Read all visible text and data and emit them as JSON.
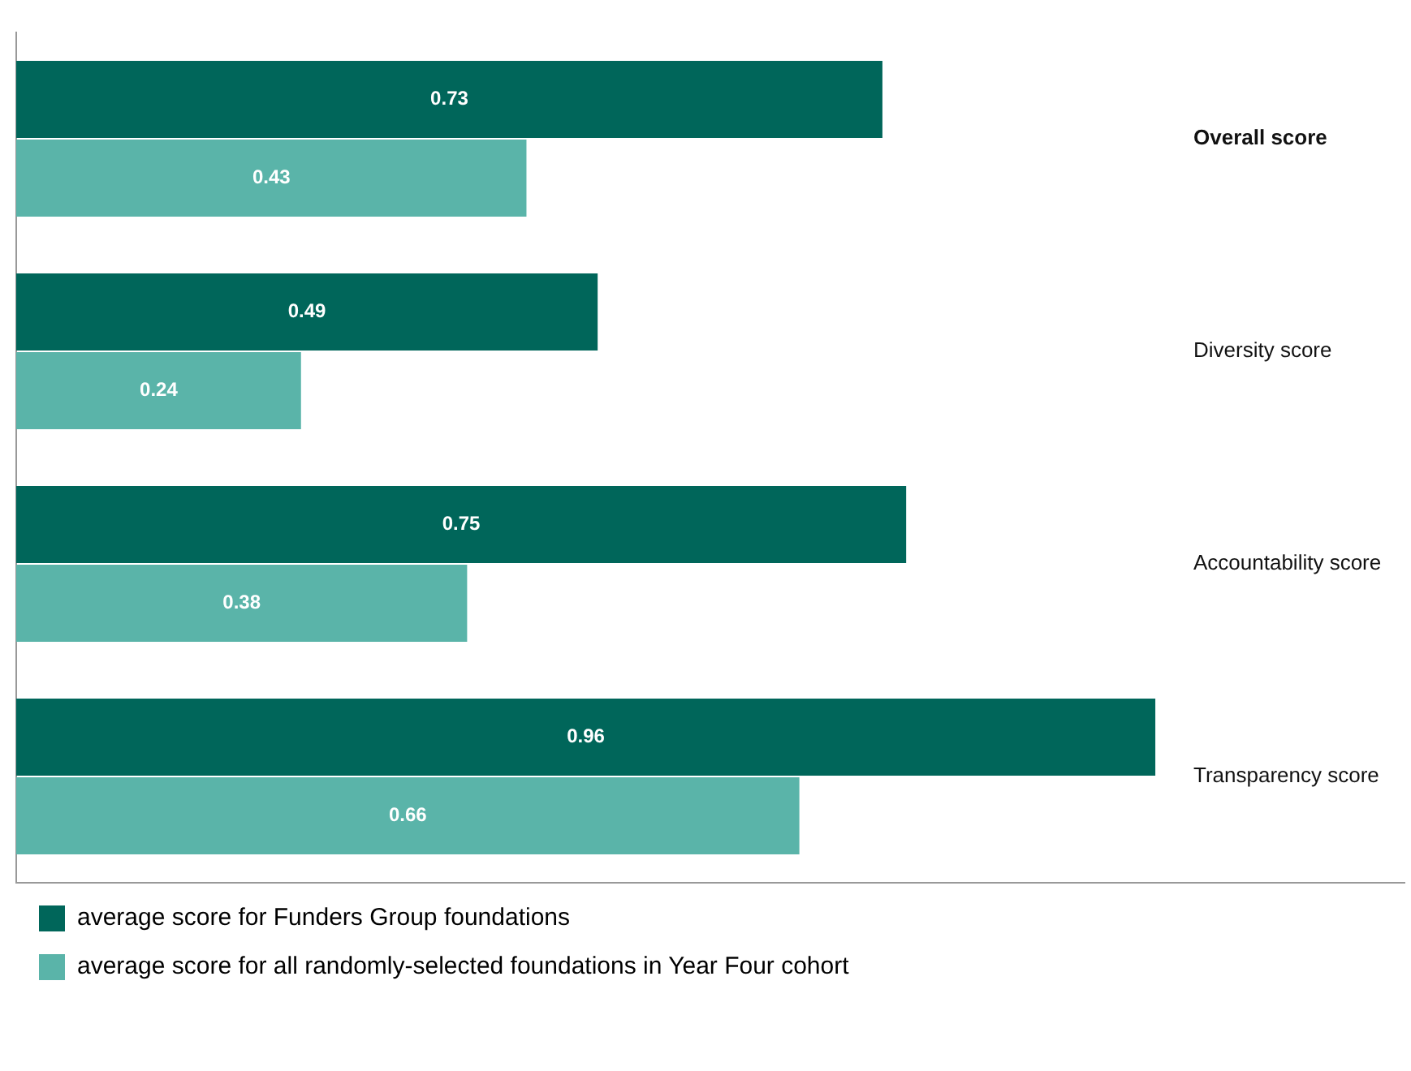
{
  "chart_data": {
    "type": "bar",
    "orientation": "horizontal",
    "categories": [
      "Overall score",
      "Diversity score",
      "Accountability score",
      "Transparency score"
    ],
    "series": [
      {
        "name": "average score for Funders Group foundations",
        "color": "#00665a",
        "values": [
          0.73,
          0.49,
          0.75,
          0.96
        ]
      },
      {
        "name": "average score for all randomly-selected foundations in Year Four cohort",
        "color": "#5ab4a9",
        "values": [
          0.43,
          0.24,
          0.38,
          0.66
        ]
      }
    ],
    "xlim": [
      0,
      1.17
    ],
    "data_labels": true,
    "grid": false,
    "legend": "bottom",
    "tick_labels": "y"
  }
}
